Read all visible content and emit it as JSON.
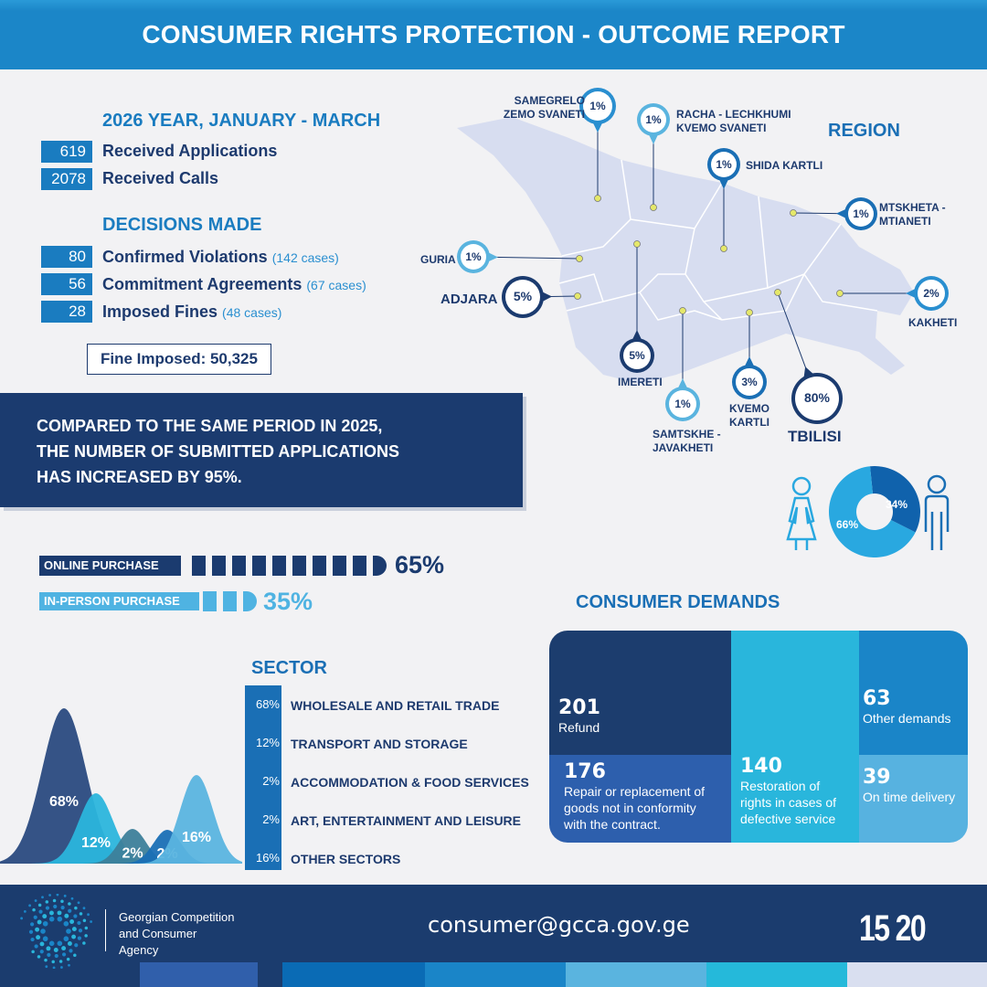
{
  "header": {
    "title": "CONSUMER RIGHTS PROTECTION - OUTCOME REPORT"
  },
  "period": {
    "title": "2026 YEAR, JANUARY - MARCH",
    "rows": [
      {
        "value": "619",
        "label": "Received Applications"
      },
      {
        "value": "2078",
        "label": "Received Calls"
      }
    ]
  },
  "decisions": {
    "title": "DECISIONS MADE",
    "rows": [
      {
        "value": "80",
        "label": "Confirmed Violations",
        "sub": "(142 cases)"
      },
      {
        "value": "56",
        "label": "Commitment Agreements",
        "sub": "(67 cases)"
      },
      {
        "value": "28",
        "label": "Imposed Fines",
        "sub": "(48 cases)"
      }
    ],
    "fine": "Fine Imposed: 50,325"
  },
  "banner": {
    "lines": [
      "COMPARED TO THE SAME PERIOD IN 2025,",
      "THE NUMBER OF SUBMITTED APPLICATIONS",
      "HAS INCREASED BY 95%."
    ]
  },
  "purchase": {
    "online": {
      "label": "ONLINE PURCHASE",
      "value": "65%",
      "fraction": 0.65,
      "color": "#1b3b6f"
    },
    "inperson": {
      "label": "IN-PERSON PURCHASE",
      "value": "35%",
      "fraction": 0.35,
      "color": "#4fb3e2"
    }
  },
  "region": {
    "title": "REGION",
    "items": [
      {
        "name": "SAMEGRELO\nZEMO SVANETI",
        "value": "1%"
      },
      {
        "name": "RACHA - LECHKHUMI\nKVEMO SVANETI",
        "value": "1%"
      },
      {
        "name": "SHIDA KARTLI",
        "value": "1%"
      },
      {
        "name": "MTSKHETA -\nMTIANETI",
        "value": "1%"
      },
      {
        "name": "GURIA",
        "value": "1%"
      },
      {
        "name": "ADJARA",
        "value": "5%"
      },
      {
        "name": "IMERETI",
        "value": "5%"
      },
      {
        "name": "SAMTSKHE -\nJAVAKHETI",
        "value": "1%"
      },
      {
        "name": "KVEMO\nKARTLI",
        "value": "3%"
      },
      {
        "name": "TBILISI",
        "value": "80%"
      },
      {
        "name": "KAKHETI",
        "value": "2%"
      }
    ]
  },
  "gender": {
    "female": {
      "value": "66%",
      "fraction": 0.66,
      "color": "#29a8e0"
    },
    "male": {
      "value": "34%",
      "fraction": 0.34,
      "color": "#1062ac"
    }
  },
  "demands": {
    "title": "CONSUMER DEMANDS",
    "items": [
      {
        "value": "201",
        "label": "Refund"
      },
      {
        "value": "176",
        "label": "Repair or replacement of goods not in conformity with the contract."
      },
      {
        "value": "140",
        "label": "Restoration of rights in cases of defective service"
      },
      {
        "value": "63",
        "label": "Other demands"
      },
      {
        "value": "39",
        "label": "On time delivery"
      }
    ]
  },
  "sector": {
    "title": "SECTOR",
    "items": [
      {
        "value": "68%",
        "label": "WHOLESALE AND RETAIL TRADE",
        "color": "#2a4a7f"
      },
      {
        "value": "12%",
        "label": "TRANSPORT AND STORAGE",
        "color": "#2bb5dc"
      },
      {
        "value": "2%",
        "label": "ACCOMMODATION & FOOD SERVICES",
        "color": "#3d7f9a"
      },
      {
        "value": "2%",
        "label": "ART, ENTERTAINMENT AND LEISURE",
        "color": "#1a6fb5"
      },
      {
        "value": "16%",
        "label": "OTHER SECTORS",
        "color": "#5ab4df"
      }
    ]
  },
  "footer": {
    "org": [
      "Georgian Competition",
      "and Consumer",
      "Agency"
    ],
    "email": "consumer@gcca.gov.ge",
    "hotline": "15 20"
  }
}
